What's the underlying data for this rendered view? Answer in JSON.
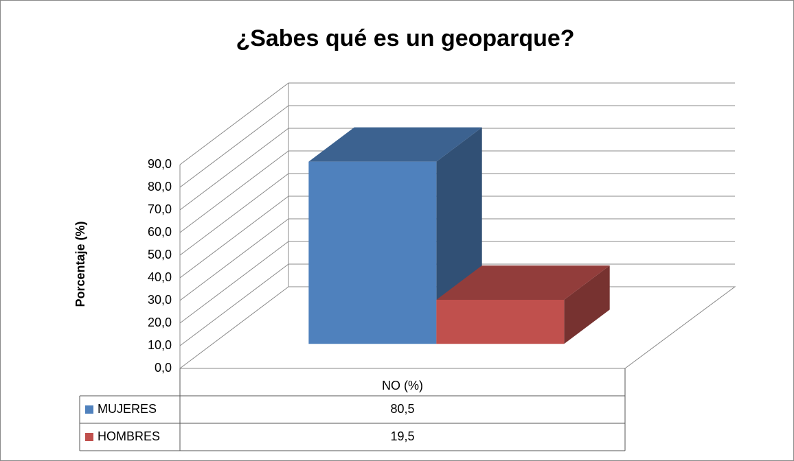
{
  "chart_data": {
    "type": "bar3d",
    "title": "¿Sabes qué es un geoparque?",
    "y_label": "Porcentaje (%)",
    "categories": [
      "NO (%)"
    ],
    "series": [
      {
        "name": "MUJERES",
        "color": "#4f81bd",
        "values": [
          80.5
        ],
        "value_labels": [
          "80,5"
        ]
      },
      {
        "name": "HOMBRES",
        "color": "#c0504d",
        "values": [
          19.5
        ],
        "value_labels": [
          "19,5"
        ]
      }
    ],
    "ylim": [
      0,
      90
    ],
    "yticks": [
      {
        "value": 0,
        "label": "0,0"
      },
      {
        "value": 10,
        "label": "10,0"
      },
      {
        "value": 20,
        "label": "20,0"
      },
      {
        "value": 30,
        "label": "30,0"
      },
      {
        "value": 40,
        "label": "40,0"
      },
      {
        "value": 50,
        "label": "50,0"
      },
      {
        "value": 60,
        "label": "60,0"
      },
      {
        "value": 70,
        "label": "70,0"
      },
      {
        "value": 80,
        "label": "80,0"
      },
      {
        "value": 90,
        "label": "90,0"
      }
    ],
    "grid": true,
    "data_table": true
  }
}
